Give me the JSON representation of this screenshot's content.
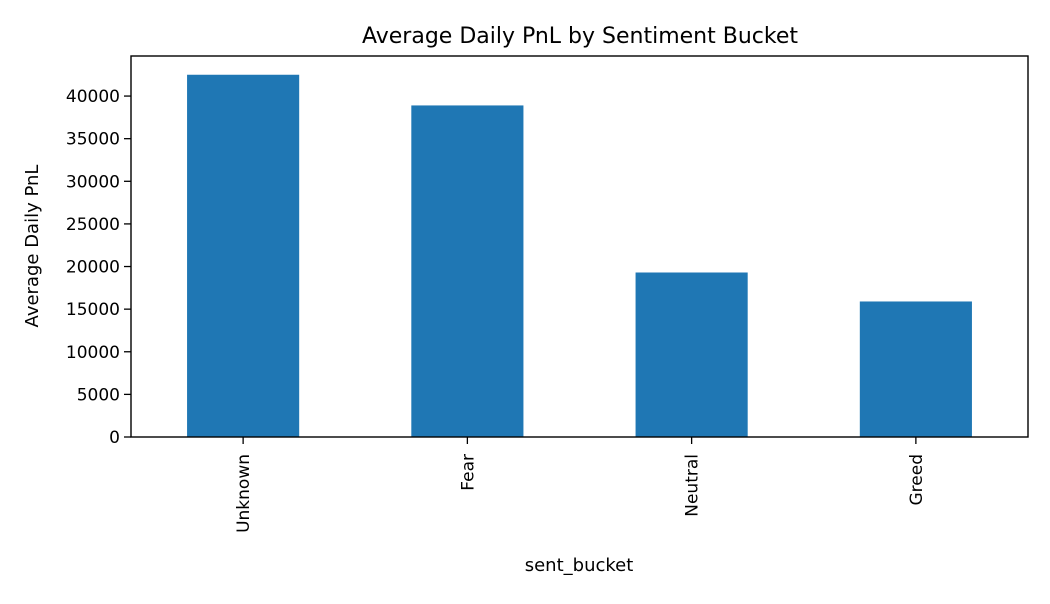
{
  "chart_data": {
    "type": "bar",
    "title": "Average Daily PnL by Sentiment Bucket",
    "xlabel": "sent_bucket",
    "ylabel": "Average Daily PnL",
    "categories": [
      "Unknown",
      "Fear",
      "Neutral",
      "Greed"
    ],
    "values": [
      42500,
      38900,
      19300,
      15900
    ],
    "ylim": [
      0,
      44700
    ],
    "yticks": [
      0,
      5000,
      10000,
      15000,
      20000,
      25000,
      30000,
      35000,
      40000
    ],
    "ytick_labels": [
      "0",
      "5000",
      "10000",
      "15000",
      "20000",
      "25000",
      "30000",
      "35000",
      "40000"
    ],
    "x_tick_rotation": "vertical",
    "grid": false,
    "legend": "none",
    "colors": {
      "bar": "#1f77b4",
      "axes": "#000000",
      "background": "#ffffff"
    }
  }
}
